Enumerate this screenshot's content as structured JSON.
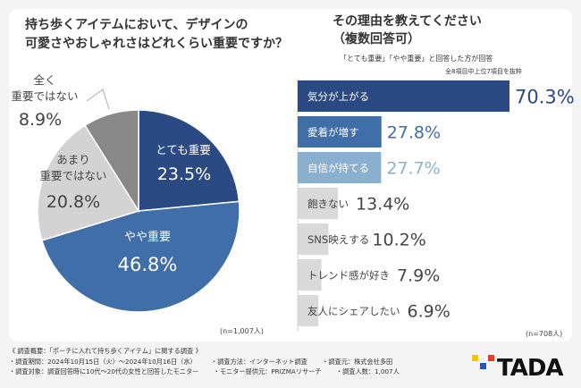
{
  "colors": {
    "navy": "#2b4a83",
    "mid": "#3f6ea8",
    "light": "#8bb0cf",
    "gray": "#d3d3d3",
    "dark_gray": "#888888",
    "bar_lead": "#2b4a83",
    "bar_second": "#3f6ea8",
    "bar_third": "#8bb0cf",
    "bar_other": "#d9d9d9"
  },
  "pie": {
    "title_lines": [
      "持ち歩くアイテムにおいて、デザインの",
      "可愛さやおしゃれさはどれくらい重要ですか？"
    ],
    "n_note": "(n=1,007人)"
  },
  "bars": {
    "title_lines": [
      "その理由を教えてください",
      "（複数回答可）"
    ],
    "subtitle": "「とても重要」「やや重要」と回答した方が回答",
    "subnote": "全8項目中上位7項目を抜粋",
    "n_note": "(n=708人)"
  },
  "chart_data": [
    {
      "type": "pie",
      "categories": [
        "とても重要",
        "やや重要",
        "あまり重要ではない",
        "全く重要ではない"
      ],
      "label_lines": [
        [
          "とても重要"
        ],
        [
          "やや重要"
        ],
        [
          "あまり",
          "重要ではない"
        ],
        [
          "全く",
          "重要ではない"
        ]
      ],
      "values": [
        23.5,
        46.8,
        20.8,
        8.9
      ],
      "value_labels": [
        "23.5%",
        "46.8%",
        "20.8%",
        "8.9%"
      ],
      "colors": [
        "#2b4a83",
        "#3f6ea8",
        "#d3d3d3",
        "#888888"
      ]
    },
    {
      "type": "bar",
      "orientation": "horizontal",
      "categories": [
        "気分が上がる",
        "愛着が増す",
        "自信が持てる",
        "飽きない",
        "SNS映えする",
        "トレンド感が好き",
        "友人にシェアしたい"
      ],
      "values": [
        70.3,
        27.8,
        27.7,
        13.4,
        10.2,
        7.9,
        6.9
      ],
      "value_labels": [
        "70.3%",
        "27.8%",
        "27.7%",
        "13.4%",
        "10.2%",
        "7.9%",
        "6.9%"
      ],
      "colors": [
        "#2b4a83",
        "#3f6ea8",
        "#8bb0cf",
        "#d9d9d9",
        "#d9d9d9",
        "#d9d9d9",
        "#d9d9d9"
      ],
      "xlim": [
        0,
        70.3
      ]
    }
  ],
  "footer": {
    "rows": [
      [
        "《 調査概要：「ポーチに入れて持ち歩くアイテム」に関する調査 》"
      ],
      [
        "・調査期間：2024年10月15日（火）～2024年10月16日（水）",
        "・調査方法：インターネット調査",
        "・調査元：株式会社多田"
      ],
      [
        "・調査対象：調査回答時に10代～20代の女性と回答したモニター",
        "・モニター提供元：PRIZMAリサーチ",
        "・調査人数：1,007人"
      ]
    ]
  },
  "logo": {
    "text": "TADA",
    "square_colors": [
      "#f5c400",
      "#2255c4",
      "#e8392b"
    ]
  }
}
